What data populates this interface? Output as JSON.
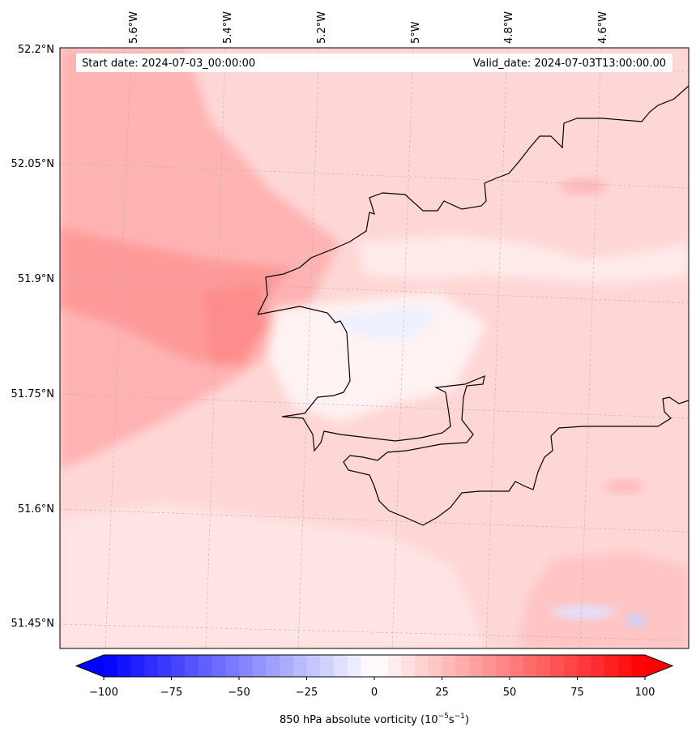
{
  "map": {
    "start_label": "Start date: 2024-07-03_00:00:00",
    "valid_label": "Valid_date: 2024-07-03T13:00:00.00",
    "lon_labels": [
      "5.6°W",
      "5.4°W",
      "5.2°W",
      "5°W",
      "4.8°W",
      "4.6°W"
    ],
    "lat_labels": [
      "52.2°N",
      "52.05°N",
      "51.9°N",
      "51.75°N",
      "51.6°N",
      "51.45°N"
    ],
    "colors": {
      "land_outline": "#000000",
      "gridline": "#b0b0b0",
      "base_field": "#ffd6d6",
      "strong_positive": "#ff8c8c",
      "weak_positive": "#fff0f0",
      "negative": "#dde4ff"
    }
  },
  "colorbar": {
    "ticks": [
      "−100",
      "−75",
      "−50",
      "−25",
      "0",
      "25",
      "50",
      "75",
      "100"
    ],
    "vmin": -100,
    "vmax": 100,
    "levels": 40,
    "low_color": "#0000ff",
    "mid_color": "#ffffff",
    "high_color": "#ff0000",
    "label": "850 hPa absolute vorticity (10",
    "label_exp1": "−5",
    "label_mid": "s",
    "label_exp2": "−1",
    "label_end": ")"
  }
}
